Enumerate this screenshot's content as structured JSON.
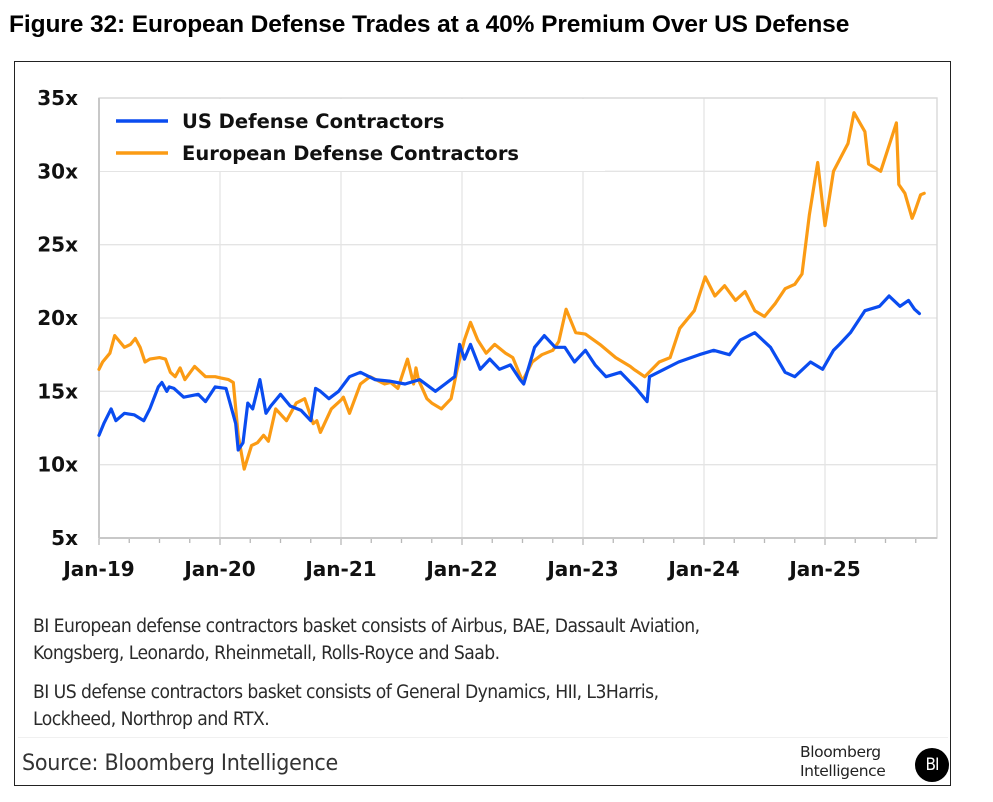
{
  "figure": {
    "title": "Figure 32: European Defense Trades at a 40% Premium Over US Defense",
    "notes": [
      "BI European defense contractors basket consists of Airbus, BAE, Dassault Aviation,",
      "Kongsberg, Leonardo, Rheinmetall, Rolls-Royce and Saab.",
      "BI US defense contractors basket consists of General Dynamics, HII, L3Harris,",
      "Lockheed, Northrop and RTX."
    ],
    "source": "Source: Bloomberg Intelligence",
    "logo": {
      "line1": "Bloomberg",
      "line2": "Intelligence",
      "badge": "BI"
    }
  },
  "chart_data": {
    "type": "line",
    "title": "European Defense Trades at a 40% Premium Over US Defense",
    "xlabel": "",
    "ylabel": "",
    "x_range": [
      "2019-01",
      "2025-12"
    ],
    "ylim": [
      5,
      35
    ],
    "yticks": [
      5,
      10,
      15,
      20,
      25,
      30,
      35
    ],
    "ytick_labels": [
      "5x",
      "10x",
      "15x",
      "20x",
      "25x",
      "30x",
      "35x"
    ],
    "xticks": [
      2019,
      2020,
      2021,
      2022,
      2023,
      2024,
      2025
    ],
    "xtick_labels": [
      "Jan-19",
      "Jan-20",
      "Jan-21",
      "Jan-22",
      "Jan-23",
      "Jan-24",
      "Jan-25"
    ],
    "grid": true,
    "legend_position": "top-left",
    "series": [
      {
        "name": "US Defense Contractors",
        "color": "#0a4cf0",
        "x": [
          2019.0,
          2019.04,
          2019.1,
          2019.14,
          2019.21,
          2019.29,
          2019.37,
          2019.42,
          2019.49,
          2019.52,
          2019.56,
          2019.58,
          2019.62,
          2019.7,
          2019.82,
          2019.88,
          2019.96,
          2020.05,
          2020.13,
          2020.15,
          2020.19,
          2020.23,
          2020.27,
          2020.33,
          2020.38,
          2020.42,
          2020.5,
          2020.58,
          2020.67,
          2020.75,
          2020.79,
          2020.83,
          2020.9,
          2020.98,
          2021.07,
          2021.16,
          2021.28,
          2021.4,
          2021.53,
          2021.65,
          2021.78,
          2021.86,
          2021.94,
          2021.98,
          2022.02,
          2022.07,
          2022.15,
          2022.23,
          2022.31,
          2022.4,
          2022.48,
          2022.51,
          2022.6,
          2022.68,
          2022.77,
          2022.85,
          2022.93,
          2023.02,
          2023.1,
          2023.19,
          2023.31,
          2023.44,
          2023.53,
          2023.55,
          2023.67,
          2023.79,
          2023.96,
          2024.08,
          2024.21,
          2024.3,
          2024.42,
          2024.55,
          2024.67,
          2024.75,
          2024.88,
          2024.98,
          2025.07,
          2025.12,
          2025.21,
          2025.33,
          2025.45,
          2025.53,
          2025.62,
          2025.69,
          2025.74,
          2025.78
        ],
        "values": [
          12.0,
          12.8,
          13.8,
          13.0,
          13.5,
          13.4,
          13.0,
          13.8,
          15.3,
          15.6,
          15.0,
          15.3,
          15.2,
          14.6,
          14.8,
          14.3,
          15.3,
          15.2,
          12.8,
          11.0,
          11.5,
          14.2,
          13.8,
          15.8,
          13.5,
          14.0,
          14.8,
          14.0,
          13.7,
          13.0,
          15.2,
          15.0,
          14.5,
          15.0,
          16.0,
          16.3,
          15.8,
          15.7,
          15.5,
          15.8,
          15.0,
          15.5,
          16.0,
          18.2,
          17.2,
          18.2,
          16.5,
          17.2,
          16.5,
          16.8,
          15.8,
          15.5,
          18.0,
          18.8,
          18.0,
          18.0,
          17.0,
          17.8,
          16.8,
          16.0,
          16.3,
          15.2,
          14.3,
          16.0,
          16.5,
          17.0,
          17.5,
          17.8,
          17.5,
          18.5,
          19.0,
          18.0,
          16.3,
          16.0,
          17.0,
          16.5,
          17.8,
          18.2,
          19.0,
          20.5,
          20.8,
          21.5,
          20.8,
          21.2,
          20.6,
          20.3
        ]
      },
      {
        "name": "European Defense Contractors",
        "color": "#fb9b14",
        "x": [
          2019.0,
          2019.03,
          2019.09,
          2019.13,
          2019.17,
          2019.21,
          2019.26,
          2019.3,
          2019.34,
          2019.38,
          2019.42,
          2019.5,
          2019.55,
          2019.59,
          2019.63,
          2019.67,
          2019.71,
          2019.79,
          2019.88,
          2019.96,
          2020.01,
          2020.07,
          2020.11,
          2020.15,
          2020.2,
          2020.26,
          2020.31,
          2020.36,
          2020.4,
          2020.46,
          2020.55,
          2020.63,
          2020.7,
          2020.77,
          2020.8,
          2020.83,
          2020.92,
          2021.0,
          2021.02,
          2021.07,
          2021.16,
          2021.24,
          2021.36,
          2021.41,
          2021.47,
          2021.55,
          2021.6,
          2021.62,
          2021.64,
          2021.71,
          2021.75,
          2021.83,
          2021.91,
          2021.96,
          2022.02,
          2022.07,
          2022.13,
          2022.2,
          2022.27,
          2022.36,
          2022.42,
          2022.5,
          2022.58,
          2022.66,
          2022.75,
          2022.8,
          2022.86,
          2022.94,
          2023.02,
          2023.14,
          2023.27,
          2023.39,
          2023.42,
          2023.51,
          2023.63,
          2023.72,
          2023.8,
          2023.92,
          2024.01,
          2024.09,
          2024.17,
          2024.26,
          2024.34,
          2024.42,
          2024.5,
          2024.59,
          2024.67,
          2024.75,
          2024.81,
          2024.87,
          2024.94,
          2025.0,
          2025.07,
          2025.19,
          2025.24,
          2025.33,
          2025.36,
          2025.46,
          2025.59,
          2025.61,
          2025.66,
          2025.72,
          2025.74,
          2025.79,
          2025.82
        ],
        "values": [
          16.5,
          17.0,
          17.6,
          18.8,
          18.4,
          18.0,
          18.2,
          18.6,
          18.0,
          17.0,
          17.2,
          17.3,
          17.2,
          16.3,
          16.0,
          16.6,
          15.8,
          16.7,
          16.0,
          16.0,
          15.9,
          15.8,
          15.6,
          12.0,
          9.7,
          11.3,
          11.5,
          12.0,
          11.6,
          13.8,
          13.0,
          14.2,
          14.5,
          12.8,
          13.0,
          12.2,
          13.8,
          14.4,
          14.6,
          13.5,
          15.5,
          16.0,
          15.5,
          15.6,
          15.2,
          17.2,
          15.5,
          16.6,
          15.8,
          14.5,
          14.2,
          13.8,
          14.5,
          16.5,
          18.5,
          19.7,
          18.5,
          17.6,
          18.2,
          17.6,
          17.3,
          15.7,
          17.0,
          17.5,
          17.8,
          18.4,
          20.6,
          19.0,
          18.9,
          18.2,
          17.3,
          16.7,
          16.5,
          16.0,
          17.0,
          17.3,
          19.3,
          20.5,
          22.8,
          21.5,
          22.2,
          21.2,
          21.8,
          20.5,
          20.1,
          21.0,
          22.0,
          22.3,
          23.0,
          27.0,
          30.6,
          26.3,
          30.0,
          31.9,
          34.0,
          32.7,
          30.5,
          30.0,
          33.3,
          29.1,
          28.5,
          26.8,
          27.2,
          28.4,
          28.5
        ]
      }
    ]
  }
}
